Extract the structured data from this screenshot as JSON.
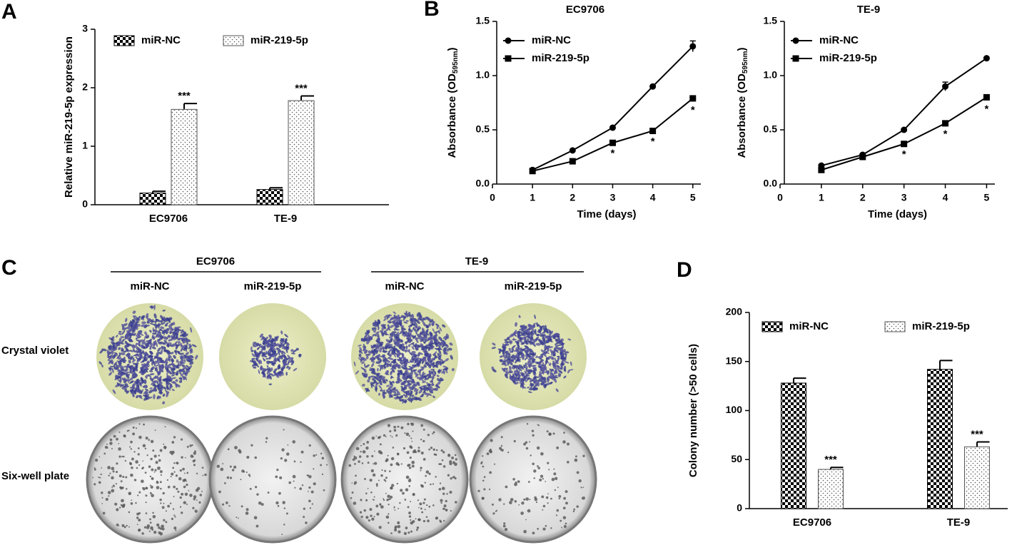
{
  "chart_data": [
    {
      "type": "bar",
      "panel": "A",
      "ylabel": "Relative miR-219-5p expression",
      "categories": [
        "EC9706",
        "TE-9"
      ],
      "ylim": [
        0,
        3
      ],
      "yticks": [
        0,
        1,
        2,
        3
      ],
      "series": [
        {
          "name": "miR-NC",
          "pattern": "checkerboard",
          "color": "#000000",
          "values": [
            0.2,
            0.26
          ],
          "errors": [
            0.03,
            0.03
          ]
        },
        {
          "name": "miR-219-5p",
          "pattern": "dots",
          "color": "#555555",
          "values": [
            1.63,
            1.78
          ],
          "errors": [
            0.1,
            0.08
          ],
          "annotations": [
            "***",
            "***"
          ]
        }
      ]
    },
    {
      "type": "line",
      "panel": "B",
      "title": "EC9706",
      "ylabel": [
        "Absorbance (OD",
        "595nm",
        ")"
      ],
      "xlabel": "Time (days)",
      "x": [
        1,
        2,
        3,
        4,
        5
      ],
      "xlim": [
        0,
        5.2
      ],
      "xticks": [
        0,
        1,
        2,
        3,
        4,
        5
      ],
      "ylim": [
        0,
        1.5
      ],
      "yticks": [
        {
          "value": 0,
          "label": "0.0"
        },
        {
          "value": 0.5,
          "label": "0.5"
        },
        {
          "value": 1,
          "label": "1.0"
        },
        {
          "value": 1.5,
          "label": "1.5"
        }
      ],
      "series": [
        {
          "name": "miR-NC",
          "marker": "circle",
          "color": "#000000",
          "values": [
            0.13,
            0.31,
            0.52,
            0.9,
            1.27
          ],
          "errors": [
            0.01,
            0.01,
            0.01,
            0.01,
            0.05
          ]
        },
        {
          "name": "miR-219-5p",
          "marker": "square",
          "color": "#000000",
          "values": [
            0.12,
            0.21,
            0.38,
            0.49,
            0.79
          ],
          "errors": [
            0.01,
            0.01,
            0.01,
            0.01,
            0.02
          ],
          "annotations": [
            null,
            null,
            "*",
            "*",
            "*"
          ]
        }
      ]
    },
    {
      "type": "line",
      "title": "TE-9",
      "ylabel": [
        "Absorbance (OD",
        "595nm",
        ")"
      ],
      "xlabel": "Time (days)",
      "x": [
        1,
        2,
        3,
        4,
        5
      ],
      "xlim": [
        0,
        5.2
      ],
      "xticks": [
        0,
        1,
        2,
        3,
        4,
        5
      ],
      "ylim": [
        0,
        1.5
      ],
      "yticks": [
        {
          "value": 0,
          "label": "0.0"
        },
        {
          "value": 0.5,
          "label": "0.5"
        },
        {
          "value": 1,
          "label": "1.0"
        },
        {
          "value": 1.5,
          "label": "1.5"
        }
      ],
      "series": [
        {
          "name": "miR-NC",
          "marker": "circle",
          "color": "#000000",
          "values": [
            0.17,
            0.27,
            0.5,
            0.9,
            1.16
          ],
          "errors": [
            0.01,
            0.01,
            0.01,
            0.04,
            0.01
          ]
        },
        {
          "name": "miR-219-5p",
          "marker": "square",
          "color": "#000000",
          "values": [
            0.13,
            0.25,
            0.37,
            0.56,
            0.8
          ],
          "errors": [
            0.01,
            0.01,
            0.01,
            0.01,
            0.02
          ],
          "annotations": [
            null,
            null,
            "*",
            "*",
            "*"
          ]
        }
      ]
    },
    {
      "type": "bar",
      "panel": "D",
      "ylabel": "Colony number (>50 cells)",
      "categories": [
        "EC9706",
        "TE-9"
      ],
      "ylim": [
        0,
        200
      ],
      "yticks": [
        0,
        50,
        100,
        150,
        200
      ],
      "series": [
        {
          "name": "miR-NC",
          "pattern": "checkerboard",
          "color": "#000000",
          "values": [
            128,
            142
          ],
          "errors": [
            5,
            9
          ]
        },
        {
          "name": "miR-219-5p",
          "pattern": "dots",
          "color": "#555555",
          "values": [
            40,
            63
          ],
          "errors": [
            2,
            5
          ],
          "annotations": [
            "***",
            "***"
          ]
        }
      ]
    }
  ],
  "panel_c": {
    "panel": "C",
    "groups": [
      "EC9706",
      "TE-9"
    ],
    "columns": [
      "miR-NC",
      "miR-219-5p",
      "miR-NC",
      "miR-219-5p"
    ],
    "rows": [
      "Crystal violet",
      "Six-well plate"
    ]
  }
}
